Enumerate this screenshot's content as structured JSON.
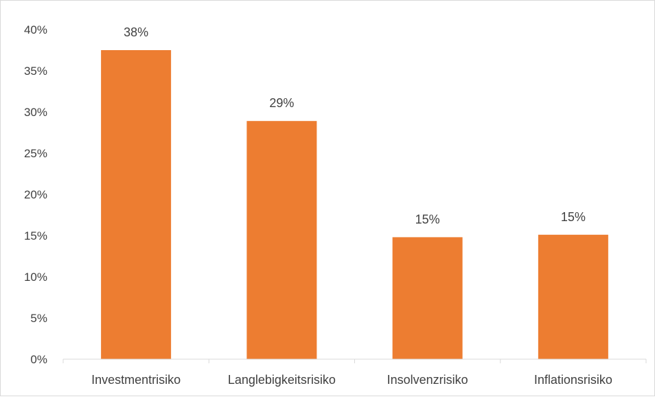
{
  "chart_data": {
    "type": "bar",
    "title": "",
    "xlabel": "",
    "ylabel": "",
    "categories": [
      "Investmentrisiko",
      "Langlebigkeitsrisiko",
      "Insolvenzrisiko",
      "Inflationsrisiko"
    ],
    "values": [
      37.5,
      28.9,
      14.8,
      15.1
    ],
    "data_labels": [
      "38%",
      "29%",
      "15%",
      "15%"
    ],
    "ylim": [
      0,
      40
    ],
    "yticks": [
      0,
      5,
      10,
      15,
      20,
      25,
      30,
      35,
      40
    ],
    "ytick_labels": [
      "0%",
      "5%",
      "10%",
      "15%",
      "20%",
      "25%",
      "30%",
      "35%",
      "40%"
    ],
    "grid": false,
    "legend": "none",
    "bar_color": "#ED7D31",
    "axis_color": "#d9d9d9"
  }
}
